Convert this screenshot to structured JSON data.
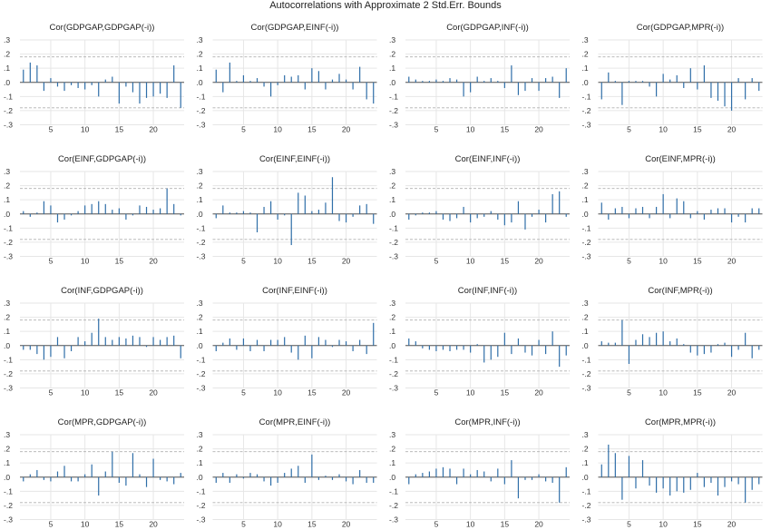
{
  "chart_data": {
    "type": "bar",
    "title": "Autocorrelations with Approximate 2 Std.Err. Bounds",
    "lags": [
      1,
      2,
      3,
      4,
      5,
      6,
      7,
      8,
      9,
      10,
      11,
      12,
      13,
      14,
      15,
      16,
      17,
      18,
      19,
      20,
      21,
      22,
      23,
      24
    ],
    "x_ticks": [
      5,
      10,
      15,
      20
    ],
    "y_ticks": [
      ".3",
      ".2",
      ".1",
      ".0",
      "-.1",
      "-.2",
      "-.3"
    ],
    "ylim": [
      -0.3,
      0.3
    ],
    "std_err_bound": 0.18,
    "colors": {
      "bar": "#2f6ea8",
      "bound": "#b0b0b0",
      "grid": "#e6e6e6",
      "axis": "#555555"
    },
    "panels": [
      {
        "title": "Cor(GDPGAP,GDPGAP(-i))",
        "values": [
          0.09,
          0.14,
          0.12,
          -0.06,
          0.03,
          -0.03,
          -0.06,
          -0.02,
          -0.04,
          -0.05,
          -0.02,
          -0.1,
          0.02,
          0.04,
          -0.15,
          -0.03,
          -0.07,
          -0.15,
          -0.11,
          -0.1,
          -0.08,
          -0.11,
          0.12,
          -0.18
        ]
      },
      {
        "title": "Cor(GDPGAP,EINF(-i))",
        "values": [
          0.09,
          -0.07,
          0.14,
          0.01,
          0.05,
          0.01,
          0.03,
          -0.03,
          -0.1,
          -0.02,
          0.05,
          0.04,
          0.05,
          -0.05,
          0.1,
          0.08,
          -0.05,
          0.02,
          0.06,
          0.02,
          -0.05,
          0.11,
          -0.12,
          -0.15
        ]
      },
      {
        "title": "Cor(GDPGAP,INF(-i))",
        "values": [
          0.04,
          0.02,
          0.01,
          0.01,
          0.02,
          0.01,
          0.03,
          0.02,
          -0.1,
          -0.07,
          0.04,
          0.01,
          0.03,
          0.01,
          -0.04,
          0.12,
          -0.09,
          -0.06,
          0.03,
          -0.06,
          0.03,
          0.04,
          -0.11,
          0.1
        ]
      },
      {
        "title": "Cor(GDPGAP,MPR(-i))",
        "values": [
          -0.12,
          0.07,
          0.01,
          -0.16,
          0.01,
          0.01,
          0.01,
          -0.03,
          -0.1,
          0.06,
          0.02,
          0.05,
          -0.04,
          0.1,
          -0.05,
          0.12,
          -0.11,
          -0.13,
          -0.17,
          -0.2,
          0.03,
          -0.12,
          0.03,
          -0.06
        ]
      },
      {
        "title": "Cor(EINF,GDPGAP(-i))",
        "values": [
          0.02,
          -0.02,
          0.01,
          0.09,
          0.06,
          -0.06,
          -0.04,
          -0.01,
          0.02,
          0.06,
          0.07,
          0.09,
          0.07,
          0.03,
          0.04,
          -0.04,
          -0.01,
          0.06,
          0.05,
          0.03,
          0.04,
          0.18,
          0.07,
          -0.01
        ]
      },
      {
        "title": "Cor(EINF,EINF(-i))",
        "values": [
          -0.03,
          0.06,
          0.01,
          0.01,
          0.02,
          0.01,
          -0.13,
          0.05,
          0.09,
          -0.04,
          -0.01,
          -0.22,
          0.15,
          0.13,
          0.02,
          0.03,
          0.08,
          0.26,
          -0.05,
          -0.06,
          -0.02,
          0.06,
          0.07,
          -0.07
        ]
      },
      {
        "title": "Cor(EINF,INF(-i))",
        "values": [
          -0.04,
          -0.01,
          0.01,
          0.01,
          0.02,
          -0.04,
          -0.05,
          -0.03,
          0.05,
          -0.06,
          -0.03,
          -0.02,
          0.02,
          -0.04,
          -0.08,
          -0.06,
          0.09,
          -0.11,
          -0.02,
          0.03,
          -0.06,
          0.14,
          0.16,
          -0.02
        ]
      },
      {
        "title": "Cor(EINF,MPR(-i))",
        "values": [
          0.08,
          -0.04,
          0.04,
          0.05,
          -0.03,
          0.04,
          0.05,
          -0.03,
          0.05,
          0.14,
          -0.03,
          0.11,
          0.09,
          -0.03,
          0.02,
          -0.04,
          0.03,
          0.04,
          0.04,
          -0.06,
          -0.02,
          -0.06,
          0.04,
          0.04
        ]
      },
      {
        "title": "Cor(INF,GDPGAP(-i))",
        "values": [
          -0.03,
          -0.03,
          -0.06,
          -0.1,
          -0.08,
          0.06,
          -0.09,
          -0.04,
          0.06,
          0.03,
          0.09,
          0.19,
          0.06,
          0.04,
          0.06,
          0.05,
          0.07,
          0.06,
          -0.01,
          0.06,
          0.04,
          0.06,
          0.07,
          -0.09
        ]
      },
      {
        "title": "Cor(INF,EINF(-i))",
        "values": [
          -0.04,
          0.02,
          0.05,
          -0.03,
          0.05,
          -0.04,
          0.04,
          -0.04,
          0.04,
          0.04,
          0.06,
          -0.05,
          -0.1,
          0.07,
          -0.09,
          0.06,
          0.04,
          -0.01,
          0.04,
          0.03,
          -0.04,
          0.04,
          -0.06,
          0.16
        ]
      },
      {
        "title": "Cor(INF,INF(-i))",
        "values": [
          0.05,
          0.03,
          -0.02,
          -0.03,
          -0.04,
          -0.03,
          -0.04,
          -0.03,
          -0.03,
          -0.05,
          0.01,
          -0.12,
          -0.1,
          -0.08,
          0.09,
          -0.06,
          0.05,
          -0.05,
          -0.07,
          0.04,
          -0.06,
          0.1,
          -0.15,
          -0.07
        ]
      },
      {
        "title": "Cor(INF,MPR(-i))",
        "values": [
          0.03,
          0.02,
          0.02,
          0.18,
          -0.13,
          0.04,
          0.08,
          0.06,
          0.09,
          0.1,
          0.03,
          0.05,
          0.01,
          -0.05,
          -0.07,
          -0.06,
          -0.05,
          0.01,
          0.02,
          -0.08,
          -0.03,
          0.09,
          -0.09,
          -0.03
        ]
      },
      {
        "title": "Cor(MPR,GDPGAP(-i))",
        "values": [
          -0.03,
          0.02,
          0.05,
          -0.02,
          -0.03,
          0.04,
          0.08,
          -0.03,
          -0.03,
          0.02,
          0.09,
          -0.13,
          0.04,
          0.18,
          -0.04,
          -0.06,
          0.17,
          0.02,
          -0.07,
          0.13,
          -0.02,
          -0.03,
          -0.05,
          0.03
        ]
      },
      {
        "title": "Cor(MPR,EINF(-i))",
        "values": [
          -0.04,
          0.03,
          -0.04,
          0.02,
          -0.01,
          0.03,
          0.02,
          -0.03,
          -0.06,
          -0.04,
          0.03,
          0.06,
          0.08,
          -0.04,
          0.16,
          -0.02,
          0.01,
          -0.02,
          0.02,
          -0.03,
          -0.05,
          0.05,
          -0.04,
          -0.04
        ]
      },
      {
        "title": "Cor(MPR,INF(-i))",
        "values": [
          -0.05,
          0.02,
          0.03,
          0.04,
          0.06,
          0.07,
          0.06,
          -0.05,
          0.06,
          0.02,
          0.05,
          0.04,
          -0.03,
          0.06,
          -0.05,
          0.12,
          -0.15,
          -0.02,
          -0.02,
          0.02,
          -0.03,
          -0.04,
          -0.18,
          0.07
        ]
      },
      {
        "title": "Cor(MPR,MPR(-i))",
        "values": [
          0.09,
          0.23,
          0.17,
          -0.16,
          0.15,
          -0.08,
          0.12,
          -0.06,
          -0.11,
          -0.08,
          -0.13,
          -0.1,
          -0.11,
          -0.09,
          0.03,
          -0.07,
          -0.04,
          -0.13,
          -0.07,
          -0.03,
          -0.05,
          -0.18,
          -0.09,
          -0.05
        ]
      }
    ]
  }
}
